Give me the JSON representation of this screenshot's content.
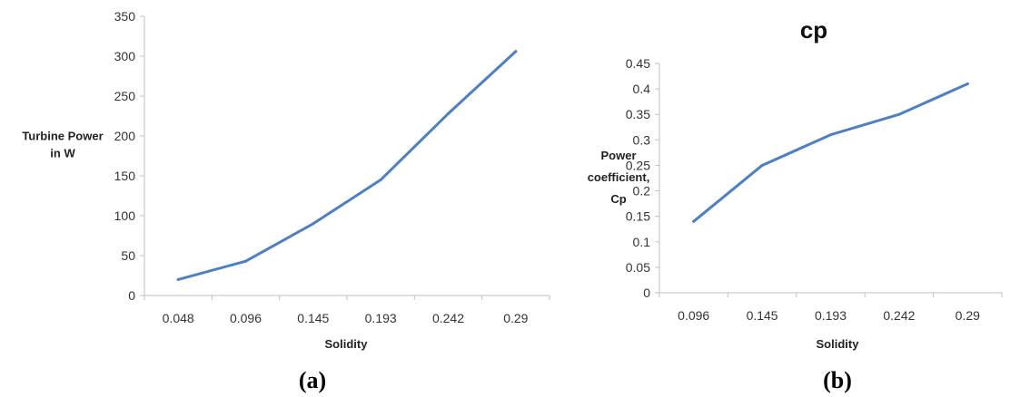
{
  "colors": {
    "series": "#4f7fbf",
    "axis": "#bfbfbf"
  },
  "chart_data": [
    {
      "type": "line",
      "panel_label": "(a)",
      "title": "",
      "xlabel": "Solidity",
      "ylabel": [
        "Turbine Power",
        "in W"
      ],
      "categories": [
        "0.048",
        "0.096",
        "0.145",
        "0.193",
        "0.242",
        "0.29"
      ],
      "values": [
        20,
        43,
        90,
        145,
        228,
        306
      ],
      "ylim": [
        0,
        350
      ],
      "ytick_step": 50,
      "ytick_decimals": 0,
      "grid": false,
      "legend": "none"
    },
    {
      "type": "line",
      "panel_label": "(b)",
      "title": "cp",
      "xlabel": "Solidity",
      "ylabel": [
        "Power",
        "coefficient,",
        "Cp"
      ],
      "categories": [
        "0.096",
        "0.145",
        "0.193",
        "0.242",
        "0.29"
      ],
      "values": [
        0.14,
        0.25,
        0.31,
        0.35,
        0.41
      ],
      "ylim": [
        0,
        0.45
      ],
      "ytick_step": 0.05,
      "ytick_decimals": 2,
      "grid": false,
      "legend": "none"
    }
  ]
}
